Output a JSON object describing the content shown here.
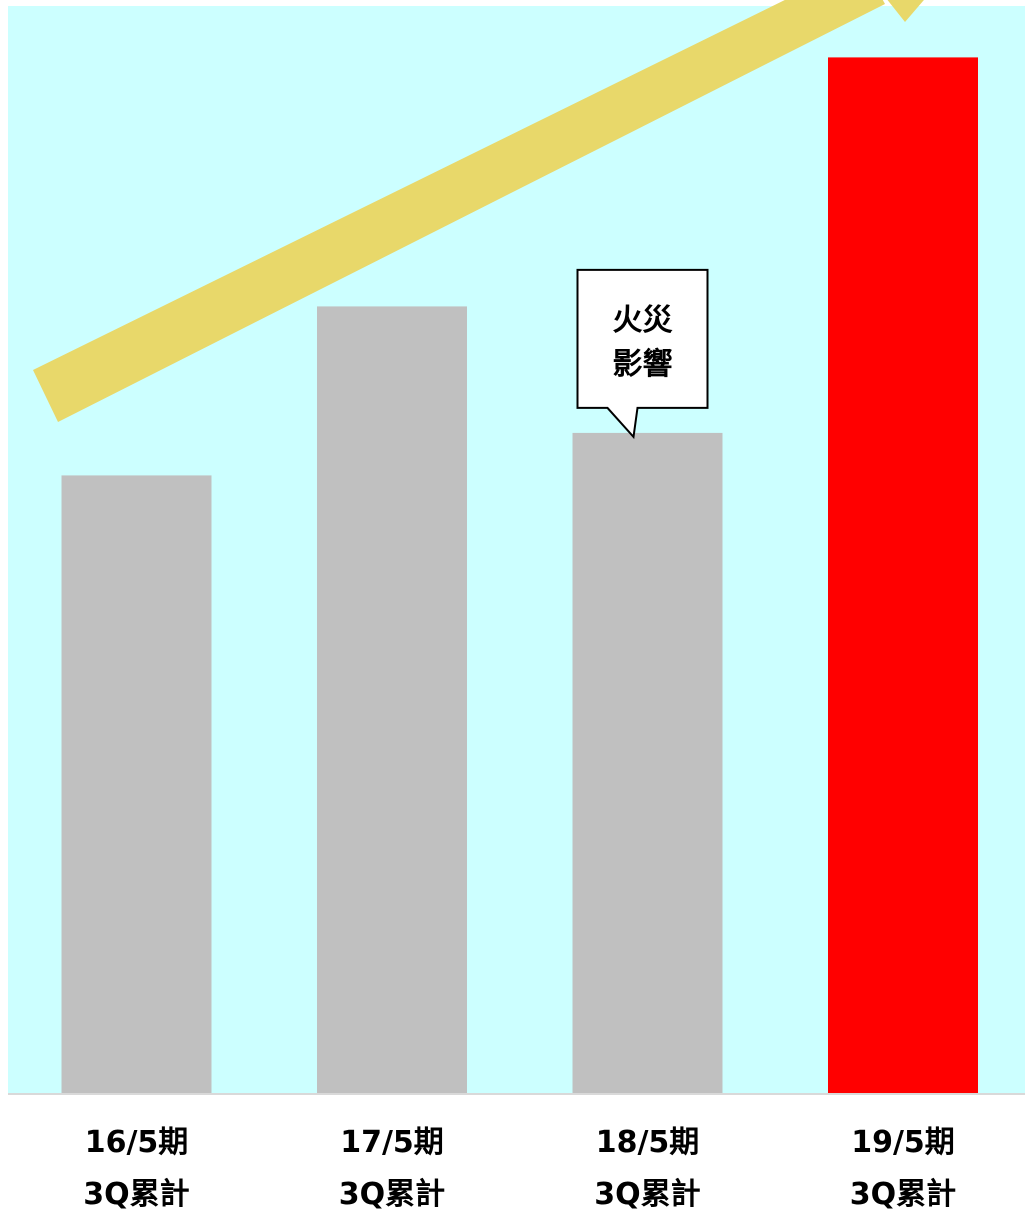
{
  "chart_data": {
    "type": "bar",
    "categories": [
      [
        "16/5期",
        "3Q累計"
      ],
      [
        "17/5期",
        "3Q累計"
      ],
      [
        "18/5期",
        "3Q累計"
      ],
      [
        "19/5期",
        "3Q累計"
      ]
    ],
    "values": [
      625,
      796,
      668,
      1048
    ],
    "ylim": [
      0,
      1100
    ],
    "grid": false,
    "title": "",
    "xlabel": "",
    "ylabel": "",
    "bar_colors": [
      "#c0c0c0",
      "#c0c0c0",
      "#c0c0c0",
      "#ff0000"
    ],
    "background_color": "#ccffff",
    "trend_arrow_color": "#e8d86a",
    "annotations": [
      {
        "category_index": 2,
        "lines": [
          "火災",
          "影響"
        ]
      }
    ]
  }
}
